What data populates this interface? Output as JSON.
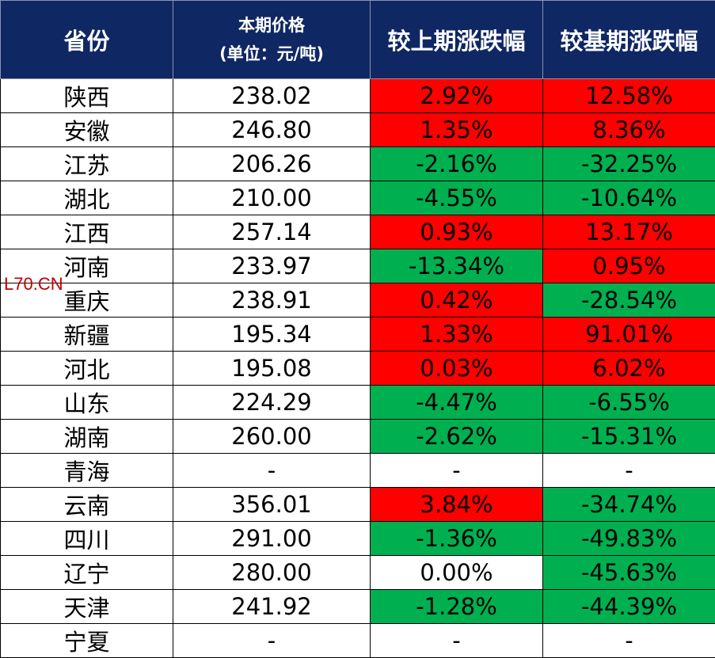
{
  "header": {
    "province": "省份",
    "price_line1": "本期价格",
    "price_line2": "(单位：元/吨)",
    "vs_prev": "较上期涨跌幅",
    "vs_base": "较基期涨跌幅"
  },
  "colors": {
    "header_bg": "#0f2763",
    "increase": "#ff0000",
    "decrease": "#00b050",
    "unchanged": "#ffffff"
  },
  "rows": [
    {
      "province": "陕西",
      "price": "238.02",
      "prev": "2.92%",
      "base": "12.58%",
      "prev_trend": "up",
      "base_trend": "up"
    },
    {
      "province": "安徽",
      "price": "246.80",
      "prev": "1.35%",
      "base": "8.36%",
      "prev_trend": "up",
      "base_trend": "up"
    },
    {
      "province": "江苏",
      "price": "206.26",
      "prev": "-2.16%",
      "base": "-32.25%",
      "prev_trend": "down",
      "base_trend": "down"
    },
    {
      "province": "湖北",
      "price": "210.00",
      "prev": "-4.55%",
      "base": "-10.64%",
      "prev_trend": "down",
      "base_trend": "down"
    },
    {
      "province": "江西",
      "price": "257.14",
      "prev": "0.93%",
      "base": "13.17%",
      "prev_trend": "up",
      "base_trend": "up"
    },
    {
      "province": "河南",
      "price": "233.97",
      "prev": "-13.34%",
      "base": "0.95%",
      "prev_trend": "down",
      "base_trend": "up"
    },
    {
      "province": "重庆",
      "price": "238.91",
      "prev": "0.42%",
      "base": "-28.54%",
      "prev_trend": "up",
      "base_trend": "down"
    },
    {
      "province": "新疆",
      "price": "195.34",
      "prev": "1.33%",
      "base": "91.01%",
      "prev_trend": "up",
      "base_trend": "up"
    },
    {
      "province": "河北",
      "price": "195.08",
      "prev": "0.03%",
      "base": "6.02%",
      "prev_trend": "up",
      "base_trend": "up"
    },
    {
      "province": "山东",
      "price": "224.29",
      "prev": "-4.47%",
      "base": "-6.55%",
      "prev_trend": "down",
      "base_trend": "down"
    },
    {
      "province": "湖南",
      "price": "260.00",
      "prev": "-2.62%",
      "base": "-15.31%",
      "prev_trend": "down",
      "base_trend": "down"
    },
    {
      "province": "青海",
      "price": "-",
      "prev": "-",
      "base": "-",
      "prev_trend": "flat",
      "base_trend": "flat"
    },
    {
      "province": "云南",
      "price": "356.01",
      "prev": "3.84%",
      "base": "-34.74%",
      "prev_trend": "up",
      "base_trend": "down"
    },
    {
      "province": "四川",
      "price": "291.00",
      "prev": "-1.36%",
      "base": "-49.83%",
      "prev_trend": "down",
      "base_trend": "down"
    },
    {
      "province": "辽宁",
      "price": "280.00",
      "prev": "0.00%",
      "base": "-45.63%",
      "prev_trend": "flat",
      "base_trend": "down"
    },
    {
      "province": "天津",
      "price": "241.92",
      "prev": "-1.28%",
      "base": "-44.39%",
      "prev_trend": "down",
      "base_trend": "down"
    },
    {
      "province": "宁夏",
      "price": "-",
      "prev": "-",
      "base": "-",
      "prev_trend": "flat",
      "base_trend": "flat"
    }
  ],
  "watermark": "L70.CN"
}
